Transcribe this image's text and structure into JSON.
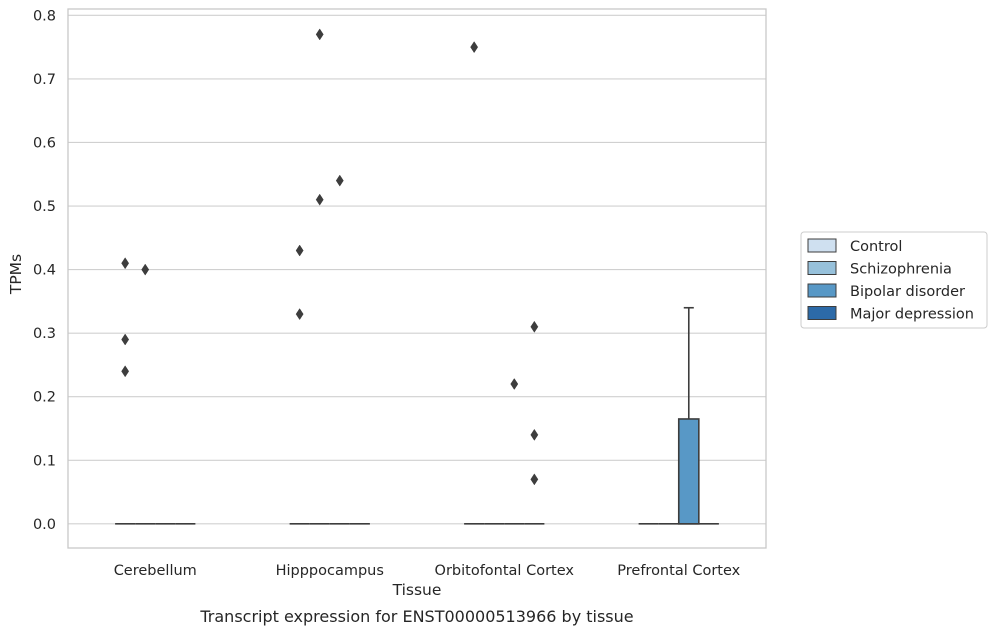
{
  "chart_data": {
    "type": "box",
    "title": "",
    "caption": "Transcript expression for ENST00000513966 by tissue",
    "xlabel": "Tissue",
    "ylabel": "TPMs",
    "ylim": [
      -0.038,
      0.81
    ],
    "yticks": [
      0.0,
      0.1,
      0.2,
      0.3,
      0.4,
      0.5,
      0.6,
      0.7,
      0.8
    ],
    "ytick_labels": [
      "0.0",
      "0.1",
      "0.2",
      "0.3",
      "0.4",
      "0.5",
      "0.6",
      "0.7",
      "0.8"
    ],
    "grid": "horizontal",
    "legend_position": "right",
    "categories": [
      "Cerebellum",
      "Hipppocampus",
      "Orbitofontal Cortex",
      "Prefrontal Cortex"
    ],
    "series": [
      {
        "name": "Control",
        "color": "#cfe0f0",
        "boxes": [
          {
            "q1": 0,
            "median": 0,
            "q3": 0,
            "whisker_low": 0,
            "whisker_high": 0,
            "outliers": [
              0.41,
              0.29,
              0.24
            ]
          },
          {
            "q1": 0,
            "median": 0,
            "q3": 0,
            "whisker_low": 0,
            "whisker_high": 0,
            "outliers": [
              0.43,
              0.33
            ]
          },
          {
            "q1": 0,
            "median": 0,
            "q3": 0,
            "whisker_low": 0,
            "whisker_high": 0,
            "outliers": [
              0.75
            ]
          },
          {
            "q1": 0,
            "median": 0,
            "q3": 0,
            "whisker_low": 0,
            "whisker_high": 0,
            "outliers": []
          }
        ]
      },
      {
        "name": "Schizophrenia",
        "color": "#97c1db",
        "boxes": [
          {
            "q1": 0,
            "median": 0,
            "q3": 0,
            "whisker_low": 0,
            "whisker_high": 0,
            "outliers": [
              0.4
            ]
          },
          {
            "q1": 0,
            "median": 0,
            "q3": 0,
            "whisker_low": 0,
            "whisker_high": 0,
            "outliers": [
              0.77,
              0.51
            ]
          },
          {
            "q1": 0,
            "median": 0,
            "q3": 0,
            "whisker_low": 0,
            "whisker_high": 0,
            "outliers": []
          },
          {
            "q1": 0,
            "median": 0,
            "q3": 0,
            "whisker_low": 0,
            "whisker_high": 0,
            "outliers": []
          }
        ]
      },
      {
        "name": "Bipolar disorder",
        "color": "#5898c6",
        "boxes": [
          {
            "q1": 0,
            "median": 0,
            "q3": 0,
            "whisker_low": 0,
            "whisker_high": 0,
            "outliers": []
          },
          {
            "q1": 0,
            "median": 0,
            "q3": 0,
            "whisker_low": 0,
            "whisker_high": 0,
            "outliers": [
              0.54
            ]
          },
          {
            "q1": 0,
            "median": 0,
            "q3": 0,
            "whisker_low": 0,
            "whisker_high": 0,
            "outliers": [
              0.22
            ]
          },
          {
            "q1": 0,
            "median": 0,
            "q3": 0.165,
            "whisker_low": 0,
            "whisker_high": 0.34,
            "outliers": []
          }
        ]
      },
      {
        "name": "Major depression",
        "color": "#2c6aa8",
        "boxes": [
          {
            "q1": 0,
            "median": 0,
            "q3": 0,
            "whisker_low": 0,
            "whisker_high": 0,
            "outliers": []
          },
          {
            "q1": 0,
            "median": 0,
            "q3": 0,
            "whisker_low": 0,
            "whisker_high": 0,
            "outliers": []
          },
          {
            "q1": 0,
            "median": 0,
            "q3": 0,
            "whisker_low": 0,
            "whisker_high": 0,
            "outliers": [
              0.31,
              0.14,
              0.07
            ]
          },
          {
            "q1": 0,
            "median": 0,
            "q3": 0,
            "whisker_low": 0,
            "whisker_high": 0,
            "outliers": []
          }
        ]
      }
    ],
    "colors": {
      "grid": "#d0d0d0",
      "frame": "#c8c8c8",
      "box_edge": "#3d3d3d",
      "outlier": "#3d3d3d",
      "legend_border": "#cccccc"
    }
  }
}
